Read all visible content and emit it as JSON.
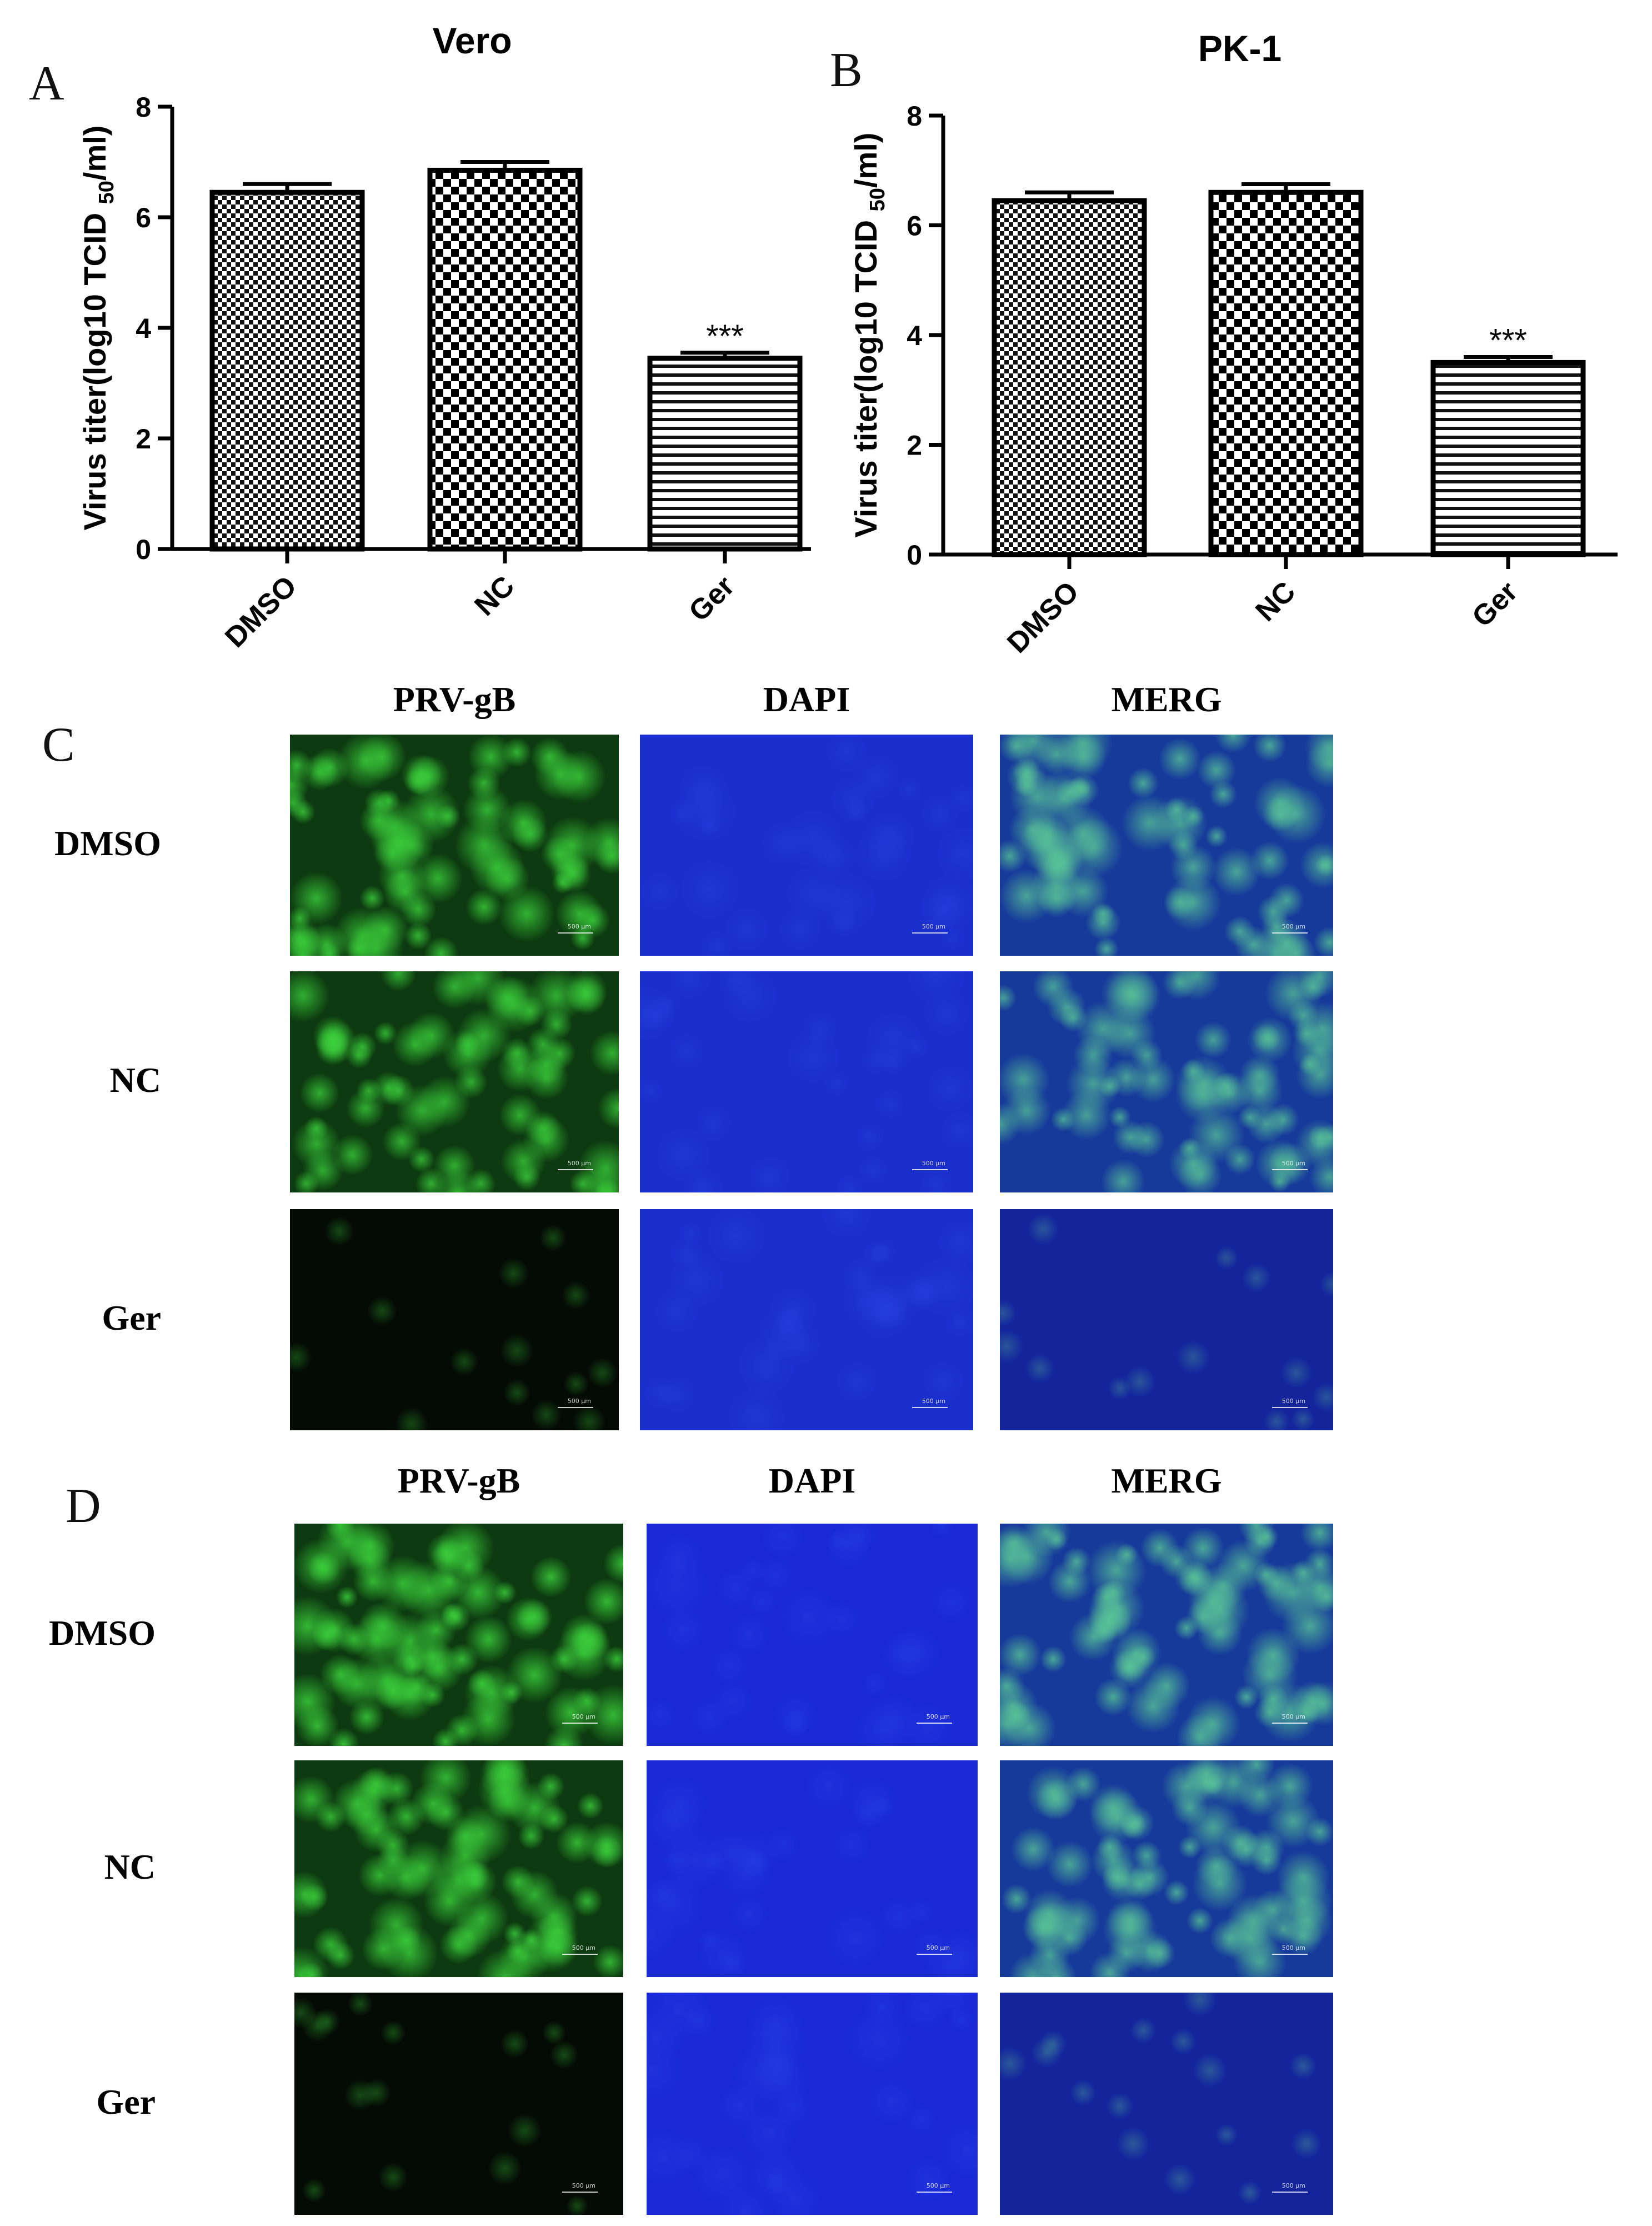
{
  "panels": {
    "A": "A",
    "B": "B",
    "C": "C",
    "D": "D"
  },
  "chart_data": [
    {
      "type": "bar",
      "title": "Vero",
      "categories": [
        "DMSO",
        "NC",
        "Ger"
      ],
      "values": [
        6.45,
        6.85,
        3.45
      ],
      "errors": [
        0.15,
        0.15,
        0.1
      ],
      "significance": [
        "",
        "",
        "***"
      ],
      "ylabel_main": "Virus titer(log10 TCID ",
      "ylabel_sub": "50",
      "ylabel_end": "/ml)",
      "ylim": [
        0,
        8
      ],
      "yticks": [
        "0",
        "2",
        "4",
        "6",
        "8"
      ],
      "patterns": [
        "fine-check",
        "coarse-check",
        "hstripes"
      ],
      "grid": false,
      "legend": "none"
    },
    {
      "type": "bar",
      "title": "PK-1",
      "categories": [
        "DMSO",
        "NC",
        "Ger"
      ],
      "values": [
        6.45,
        6.6,
        3.5
      ],
      "errors": [
        0.15,
        0.15,
        0.1
      ],
      "significance": [
        "",
        "",
        "***"
      ],
      "ylabel_main": "Virus titer(log10 TCID ",
      "ylabel_sub": "50",
      "ylabel_end": "/ml)",
      "ylim": [
        0,
        8
      ],
      "yticks": [
        "0",
        "2",
        "4",
        "6",
        "8"
      ],
      "patterns": [
        "fine-check",
        "coarse-check",
        "hstripes"
      ],
      "grid": false,
      "legend": "none"
    }
  ],
  "microscopy": [
    {
      "columns": [
        "PRV-gB",
        "DAPI",
        "MERG"
      ],
      "rows": [
        "DMSO",
        "NC",
        "Ger"
      ],
      "infection_level": [
        0.9,
        0.85,
        0.1
      ],
      "scale_text": "500 µm",
      "colors": {
        "green": "#2ec82e",
        "blue": "#1a2ecc",
        "dark": "#050a05"
      }
    },
    {
      "columns": [
        "PRV-gB",
        "DAPI",
        "MERG"
      ],
      "rows": [
        "DMSO",
        "NC",
        "Ger"
      ],
      "infection_level": [
        0.95,
        0.9,
        0.12
      ],
      "scale_text": "500 µm",
      "colors": {
        "green": "#33cc33",
        "blue": "#1a28d6",
        "dark": "#050a05"
      }
    }
  ]
}
